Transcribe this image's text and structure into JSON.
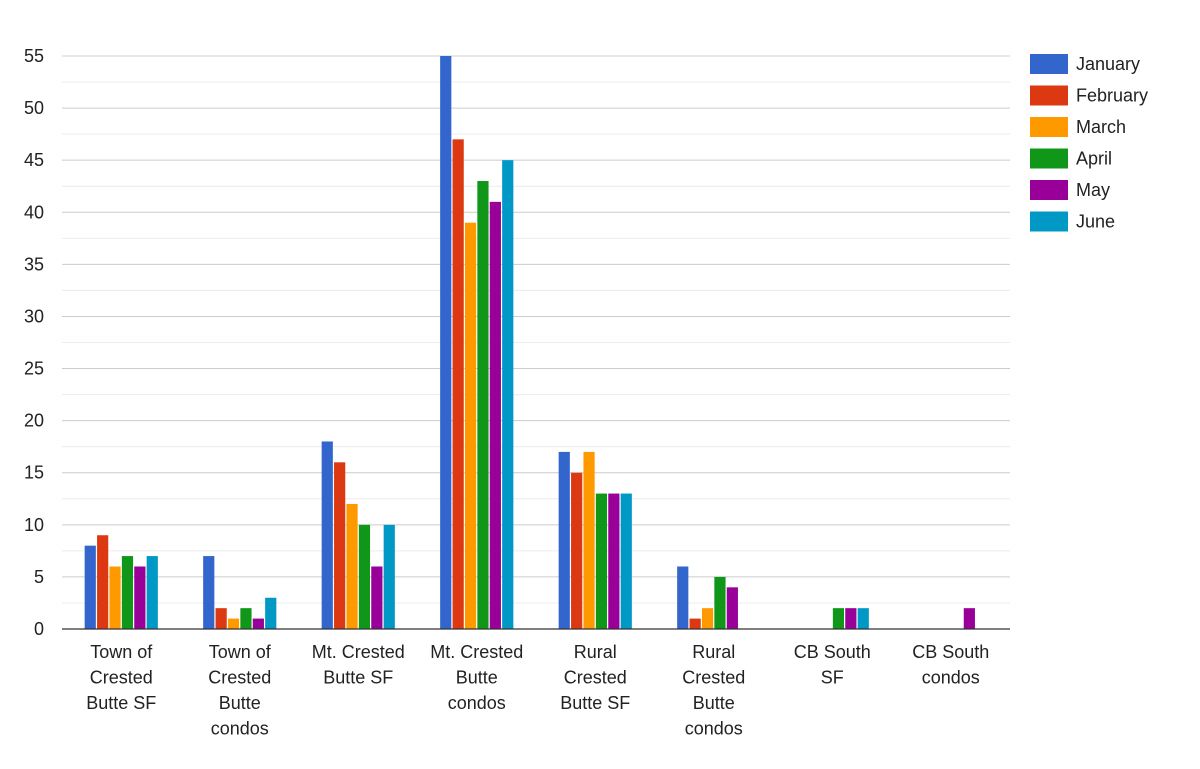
{
  "chart_data": {
    "type": "bar",
    "title": "",
    "xlabel": "",
    "ylabel": "",
    "ylim": [
      0,
      55
    ],
    "yticks": [
      0,
      5,
      10,
      15,
      20,
      25,
      30,
      35,
      40,
      45,
      50,
      55
    ],
    "grid": true,
    "legend_position": "right",
    "categories": [
      [
        "Town of",
        "Crested",
        "Butte SF"
      ],
      [
        "Town of",
        "Crested",
        "Butte",
        "condos"
      ],
      [
        "Mt. Crested",
        "Butte SF"
      ],
      [
        "Mt. Crested",
        "Butte",
        "condos"
      ],
      [
        "Rural",
        "Crested",
        "Butte SF"
      ],
      [
        "Rural",
        "Crested",
        "Butte",
        "condos"
      ],
      [
        "CB South",
        "SF"
      ],
      [
        "CB South",
        "condos"
      ]
    ],
    "series": [
      {
        "name": "January",
        "color": "#3366cc",
        "values": [
          8,
          7,
          18,
          55,
          17,
          6,
          0,
          0
        ]
      },
      {
        "name": "February",
        "color": "#dc3912",
        "values": [
          9,
          2,
          16,
          47,
          15,
          1,
          0,
          0
        ]
      },
      {
        "name": "March",
        "color": "#ff9900",
        "values": [
          6,
          1,
          12,
          39,
          17,
          2,
          0,
          0
        ]
      },
      {
        "name": "April",
        "color": "#109618",
        "values": [
          7,
          2,
          10,
          43,
          13,
          5,
          2,
          0
        ]
      },
      {
        "name": "May",
        "color": "#990099",
        "values": [
          6,
          1,
          6,
          41,
          13,
          4,
          2,
          2
        ]
      },
      {
        "name": "June",
        "color": "#0099c6",
        "values": [
          7,
          3,
          10,
          45,
          13,
          0,
          2,
          0
        ]
      }
    ]
  }
}
